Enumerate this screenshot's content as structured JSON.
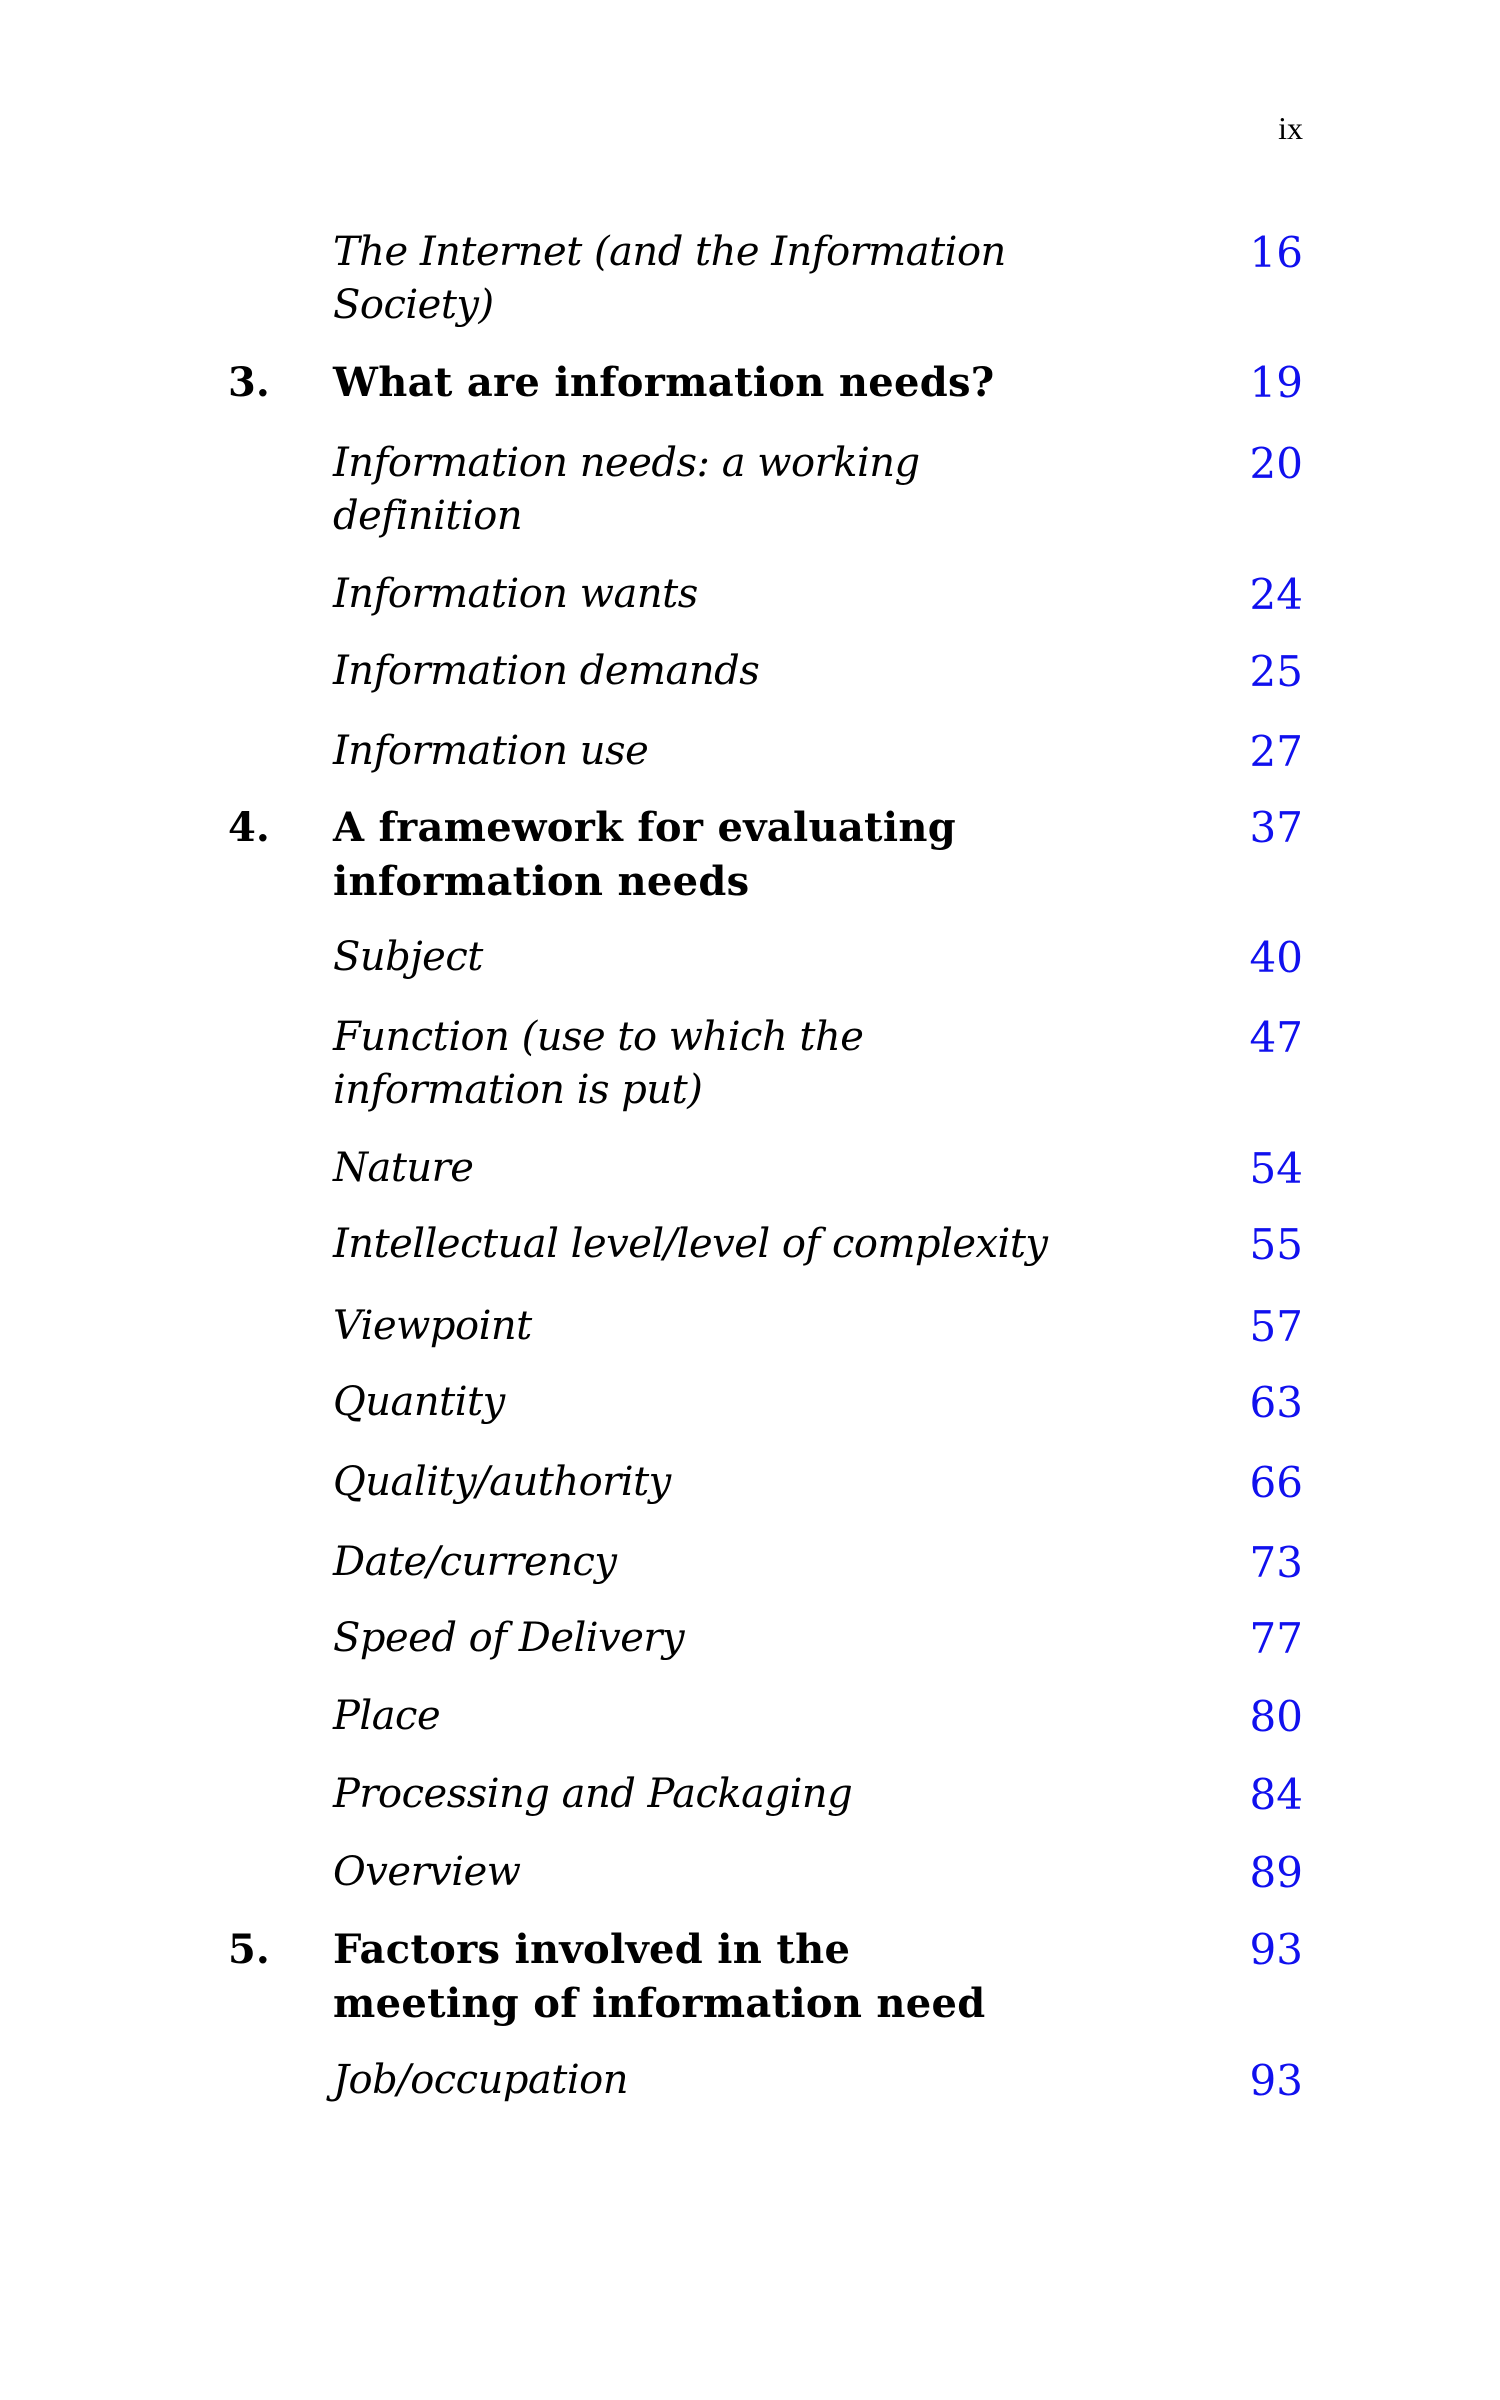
{
  "page_number": "ix",
  "link_color": "#1010ee",
  "entries": [
    {
      "type": "section",
      "lines": [
        "The Internet (and the Information",
        "Society)"
      ],
      "page": "16"
    },
    {
      "type": "chapter",
      "number": "3.",
      "lines": [
        "What are information needs?"
      ],
      "page": "19"
    },
    {
      "type": "section",
      "lines": [
        "Information needs: a working",
        "definition"
      ],
      "page": "20"
    },
    {
      "type": "section",
      "lines": [
        "Information wants"
      ],
      "page": "24"
    },
    {
      "type": "section",
      "lines": [
        "Information demands"
      ],
      "page": "25"
    },
    {
      "type": "section",
      "lines": [
        "Information use"
      ],
      "page": "27"
    },
    {
      "type": "chapter",
      "number": "4.",
      "lines": [
        "A framework for evaluating",
        "information needs"
      ],
      "page": "37"
    },
    {
      "type": "section",
      "lines": [
        "Subject"
      ],
      "page": "40"
    },
    {
      "type": "section",
      "lines": [
        "Function (use to which the",
        "information is put)"
      ],
      "page": "47"
    },
    {
      "type": "section",
      "lines": [
        "Nature"
      ],
      "page": "54"
    },
    {
      "type": "section",
      "lines": [
        "Intellectual level/level of complexity"
      ],
      "page": "55"
    },
    {
      "type": "section",
      "lines": [
        "Viewpoint"
      ],
      "page": "57"
    },
    {
      "type": "section",
      "lines": [
        "Quantity"
      ],
      "page": "63"
    },
    {
      "type": "section",
      "lines": [
        "Quality/authority"
      ],
      "page": "66"
    },
    {
      "type": "section",
      "lines": [
        "Date/currency"
      ],
      "page": "73"
    },
    {
      "type": "section",
      "lines": [
        "Speed of Delivery"
      ],
      "page": "77"
    },
    {
      "type": "section",
      "lines": [
        "Place"
      ],
      "page": "80"
    },
    {
      "type": "section",
      "lines": [
        "Processing and Packaging"
      ],
      "page": "84"
    },
    {
      "type": "section",
      "lines": [
        "Overview"
      ],
      "page": "89"
    },
    {
      "type": "chapter",
      "number": "5.",
      "lines": [
        "Factors involved in the",
        "meeting of information need"
      ],
      "page": "93"
    },
    {
      "type": "section",
      "lines": [
        "Job/occupation"
      ],
      "page": "93"
    }
  ]
}
